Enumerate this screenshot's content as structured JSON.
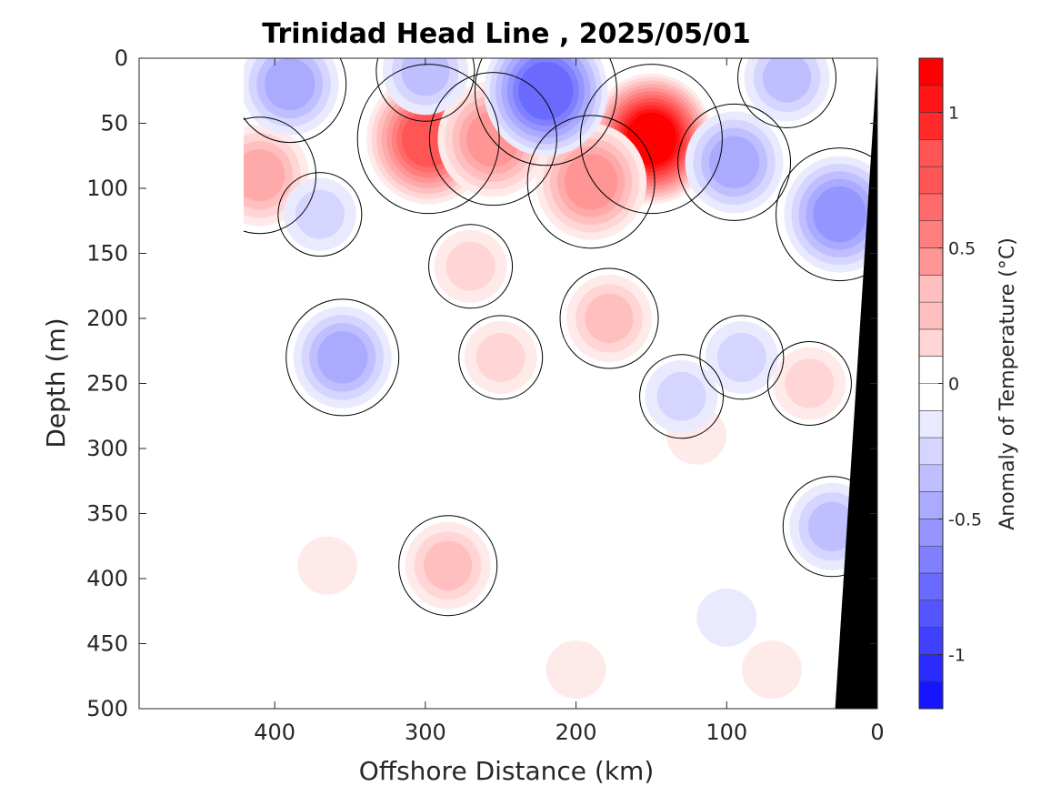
{
  "chart_data": {
    "type": "heatmap",
    "title": "Trinidad Head Line , 2025/05/01",
    "xlabel": "Offshore Distance (km)",
    "ylabel": "Depth (m)",
    "xlim": [
      490,
      0
    ],
    "ylim": [
      0,
      500
    ],
    "x_reversed": true,
    "y_reversed": true,
    "x_ticks": [
      400,
      300,
      200,
      100,
      0
    ],
    "y_ticks": [
      0,
      50,
      100,
      150,
      200,
      250,
      300,
      350,
      400,
      450,
      500
    ],
    "data_extent_x_km": [
      0,
      420
    ],
    "colorbar": {
      "label": "Anomaly of Temperature (°C)",
      "range": [
        -1.2,
        1.2
      ],
      "step": 0.1,
      "ticks": [
        1,
        0.5,
        0,
        -0.5,
        -1
      ],
      "tick_labels": [
        "1",
        "0.5",
        "0",
        "-0.5",
        "-1"
      ],
      "colormap": "blue-white-red",
      "neg_color": "#0000ff",
      "pos_color": "#ff0000",
      "zero_color": "#ffffff"
    },
    "bathymetry": [
      {
        "x": 0,
        "depth": 0
      },
      {
        "x": 28,
        "depth": 500
      }
    ],
    "bathymetry_color": "#000000",
    "anomaly_features": [
      {
        "x": 150,
        "depth": 62,
        "value": 1.2
      },
      {
        "x": 190,
        "depth": 95,
        "value": 0.5
      },
      {
        "x": 178,
        "depth": 200,
        "value": 0.3
      },
      {
        "x": 298,
        "depth": 62,
        "value": 0.8
      },
      {
        "x": 255,
        "depth": 62,
        "value": 0.55
      },
      {
        "x": 270,
        "depth": 160,
        "value": 0.25
      },
      {
        "x": 250,
        "depth": 230,
        "value": 0.25
      },
      {
        "x": 285,
        "depth": 390,
        "value": 0.3
      },
      {
        "x": 410,
        "depth": 90,
        "value": 0.45
      },
      {
        "x": 365,
        "depth": 390,
        "value": 0.15
      },
      {
        "x": 200,
        "depth": 470,
        "value": 0.15
      },
      {
        "x": 70,
        "depth": 470,
        "value": 0.15
      },
      {
        "x": 45,
        "depth": 250,
        "value": 0.2
      },
      {
        "x": 120,
        "depth": 290,
        "value": 0.15
      },
      {
        "x": 220,
        "depth": 25,
        "value": -0.7
      },
      {
        "x": 390,
        "depth": 20,
        "value": -0.45
      },
      {
        "x": 300,
        "depth": 10,
        "value": -0.35
      },
      {
        "x": 355,
        "depth": 230,
        "value": -0.45
      },
      {
        "x": 370,
        "depth": 120,
        "value": -0.25
      },
      {
        "x": 95,
        "depth": 80,
        "value": -0.45
      },
      {
        "x": 130,
        "depth": 260,
        "value": -0.25
      },
      {
        "x": 90,
        "depth": 230,
        "value": -0.2
      },
      {
        "x": 25,
        "depth": 120,
        "value": -0.5
      },
      {
        "x": 30,
        "depth": 360,
        "value": -0.35
      },
      {
        "x": 100,
        "depth": 430,
        "value": -0.1
      },
      {
        "x": 60,
        "depth": 15,
        "value": -0.3
      }
    ]
  }
}
